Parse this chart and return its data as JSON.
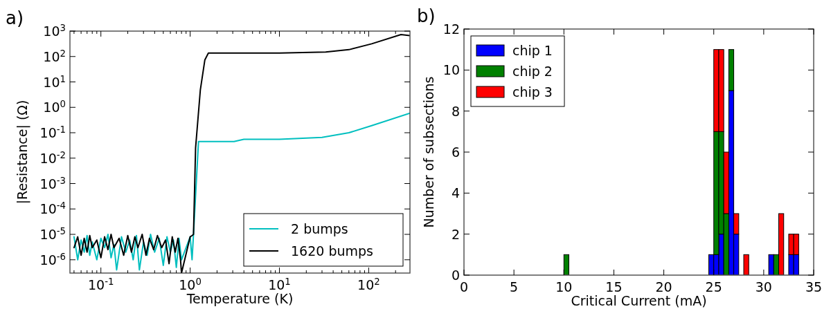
{
  "chart_data": [
    {
      "type": "line",
      "annotations": [
        "a)"
      ],
      "xlabel": "Temperature (K)",
      "ylabel": "|Resistance| (Ω)",
      "log": "xy",
      "xlim": [
        0.045,
        290
      ],
      "ylim": [
        3e-07,
        1000
      ],
      "xticks": [
        {
          "value": 0.1,
          "label": "10$^{-1}$"
        },
        {
          "value": 1,
          "label": "10$^{0}$"
        },
        {
          "value": 10,
          "label": "10$^{1}$"
        },
        {
          "value": 100,
          "label": "10$^{2}$"
        },
        {
          "value": 0.05,
          "label": null
        },
        {
          "value": 0.06,
          "label": null
        },
        {
          "value": 0.07,
          "label": null
        },
        {
          "value": 0.08,
          "label": null
        },
        {
          "value": 0.09,
          "label": null
        },
        {
          "value": 0.2,
          "label": null
        },
        {
          "value": 0.3,
          "label": null
        },
        {
          "value": 0.4,
          "label": null
        },
        {
          "value": 0.5,
          "label": null
        },
        {
          "value": 0.6,
          "label": null
        },
        {
          "value": 0.7,
          "label": null
        },
        {
          "value": 0.8,
          "label": null
        },
        {
          "value": 0.9,
          "label": null
        },
        {
          "value": 2,
          "label": null
        },
        {
          "value": 3,
          "label": null
        },
        {
          "value": 4,
          "label": null
        },
        {
          "value": 5,
          "label": null
        },
        {
          "value": 6,
          "label": null
        },
        {
          "value": 7,
          "label": null
        },
        {
          "value": 8,
          "label": null
        },
        {
          "value": 9,
          "label": null
        },
        {
          "value": 20,
          "label": null
        },
        {
          "value": 30,
          "label": null
        },
        {
          "value": 40,
          "label": null
        },
        {
          "value": 50,
          "label": null
        },
        {
          "value": 60,
          "label": null
        },
        {
          "value": 70,
          "label": null
        },
        {
          "value": 80,
          "label": null
        },
        {
          "value": 90,
          "label": null
        },
        {
          "value": 200,
          "label": null
        }
      ],
      "yticks": [
        {
          "value": 1e-06,
          "label": "10$^{-6}$"
        },
        {
          "value": 1e-05,
          "label": "10$^{-5}$"
        },
        {
          "value": 0.0001,
          "label": "10$^{-4}$"
        },
        {
          "value": 0.001,
          "label": "10$^{-3}$"
        },
        {
          "value": 0.01,
          "label": "10$^{-2}$"
        },
        {
          "value": 0.1,
          "label": "10$^{-1}$"
        },
        {
          "value": 1,
          "label": "10$^{0}$"
        },
        {
          "value": 10,
          "label": "10$^{1}$"
        },
        {
          "value": 100,
          "label": "10$^{2}$"
        },
        {
          "value": 1000,
          "label": "10$^{3}$"
        }
      ],
      "legend": "bottom right",
      "series": [
        {
          "name": "2 bumps",
          "color": "#00bfbf",
          "x": [
            0.05,
            0.055,
            0.06,
            0.065,
            0.07,
            0.075,
            0.08,
            0.09,
            0.1,
            0.11,
            0.12,
            0.13,
            0.14,
            0.15,
            0.17,
            0.19,
            0.21,
            0.23,
            0.25,
            0.27,
            0.3,
            0.33,
            0.36,
            0.4,
            0.45,
            0.5,
            0.55,
            0.6,
            0.65,
            0.7,
            0.75,
            0.8,
            0.9,
            1.0,
            1.05,
            1.09,
            1.24,
            3.1,
            4,
            10,
            30,
            60,
            108,
            290
          ],
          "values": [
            8e-06,
            1e-06,
            6e-06,
            2e-06,
            9e-06,
            1.5e-06,
            5e-06,
            1e-06,
            7e-06,
            3e-06,
            1e-05,
            1.2e-06,
            4e-06,
            4e-07,
            8e-06,
            2e-06,
            6e-06,
            1e-06,
            9e-06,
            4e-07,
            5e-06,
            1.5e-06,
            1e-05,
            2e-06,
            7e-06,
            6e-07,
            8e-06,
            2e-06,
            6e-06,
            5e-07,
            7e-06,
            1e-06,
            3e-06,
            8e-06,
            1e-06,
            1e-05,
            0.045,
            0.045,
            0.055,
            0.055,
            0.066,
            0.1,
            0.19,
            0.59
          ]
        },
        {
          "name": "1620 bumps",
          "color": "#000000",
          "x": [
            0.05,
            0.055,
            0.06,
            0.065,
            0.07,
            0.075,
            0.08,
            0.09,
            0.1,
            0.11,
            0.12,
            0.13,
            0.14,
            0.16,
            0.18,
            0.2,
            0.22,
            0.24,
            0.26,
            0.29,
            0.32,
            0.35,
            0.39,
            0.43,
            0.48,
            0.53,
            0.58,
            0.63,
            0.68,
            0.73,
            0.78,
            0.8,
            1.0,
            1.05,
            1.09,
            1.15,
            1.3,
            1.46,
            1.6,
            10,
            33,
            60,
            108,
            230,
            290
          ],
          "values": [
            3e-06,
            8e-06,
            1.5e-06,
            7e-06,
            2e-06,
            9e-06,
            3e-06,
            6e-06,
            1.2e-06,
            8e-06,
            2.5e-06,
            1e-05,
            3e-06,
            7e-06,
            1.5e-06,
            9e-06,
            2e-06,
            8e-06,
            3e-06,
            1e-05,
            1.5e-06,
            7e-06,
            2.5e-06,
            9e-06,
            3e-06,
            6e-06,
            7e-07,
            8e-06,
            2e-06,
            7e-06,
            1e-06,
            3e-07,
            8e-06,
            9e-06,
            1e-05,
            0.025,
            4.8,
            73,
            137,
            137,
            150,
            186,
            316,
            730,
            660
          ]
        }
      ]
    },
    {
      "type": "bar",
      "annotations": [
        "b)"
      ],
      "xlabel": "Critical Current (mA)",
      "ylabel": "Number of subsections",
      "stacked": true,
      "xlim": [
        0,
        35
      ],
      "ylim": [
        0,
        12
      ],
      "xticks": [
        0,
        5,
        10,
        15,
        20,
        25,
        30,
        35
      ],
      "yticks": [
        0,
        2,
        4,
        6,
        8,
        10,
        12
      ],
      "legend": "top left",
      "x": [
        10.25,
        24.75,
        25.25,
        25.75,
        26.25,
        26.75,
        27.25,
        28.25,
        30.75,
        31.25,
        31.75,
        32.75,
        33.25
      ],
      "series": [
        {
          "name": "chip 1",
          "color": "#0000ff",
          "values": [
            0,
            1,
            1,
            2,
            0,
            9,
            2,
            0,
            1,
            0,
            0,
            1,
            1
          ]
        },
        {
          "name": "chip 2",
          "color": "#008000",
          "values": [
            1,
            0,
            6,
            5,
            3,
            2,
            0,
            0,
            0,
            1,
            0,
            0,
            0
          ]
        },
        {
          "name": "chip 3",
          "color": "#ff0000",
          "values": [
            0,
            0,
            4,
            4,
            3,
            0,
            1,
            1,
            0,
            0,
            3,
            1,
            1
          ]
        }
      ]
    }
  ]
}
